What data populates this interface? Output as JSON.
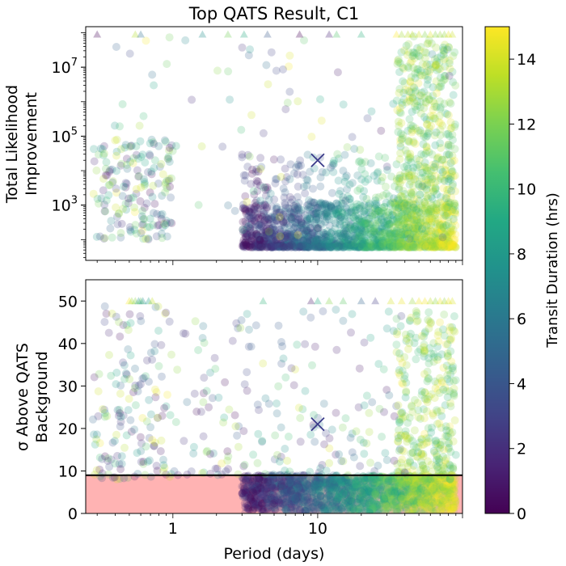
{
  "chart_data": [
    {
      "type": "scatter",
      "title": "Top QATS Result, C1",
      "xlabel": "",
      "ylabel_line1": "Total Likelihood",
      "ylabel_line2": "Improvement",
      "x_scale": "log",
      "y_scale": "log",
      "xlim": [
        0.25,
        100
      ],
      "ylim": [
        25,
        150000000
      ],
      "x_ticks": [],
      "y_ticks": [
        {
          "value": 1000,
          "base": "10",
          "exp": "3"
        },
        {
          "value": 100000,
          "base": "10",
          "exp": "5"
        },
        {
          "value": 10000000,
          "base": "10",
          "exp": "7"
        }
      ],
      "colorbar": {
        "label": "Transit Duration (hrs)",
        "colormap": "viridis",
        "range": [
          0,
          15
        ],
        "ticks": [
          "0",
          "2",
          "4",
          "6",
          "8",
          "10",
          "12",
          "14"
        ]
      },
      "highlight": {
        "marker": "x",
        "x": 10,
        "y": 20000,
        "color": "#3b3b8a"
      },
      "clusters": [
        {
          "desc": "dense main band",
          "x_range": [
            3,
            90
          ],
          "y_range": [
            60,
            1200
          ],
          "count": 1700,
          "dur_mode": "by_period"
        },
        {
          "desc": "upper spread",
          "x_range": [
            3,
            90
          ],
          "y_range": [
            400,
            30000
          ],
          "count": 260,
          "dur_mode": "by_period"
        },
        {
          "desc": "long-period column",
          "x_range": [
            35,
            90
          ],
          "y_range": [
            200,
            50000000
          ],
          "count": 420,
          "dur_mode": "high"
        },
        {
          "desc": "short-period cluster",
          "x_range": [
            0.28,
            1
          ],
          "y_range": [
            100,
            80000
          ],
          "count": 170,
          "dur_mode": "mixed"
        },
        {
          "desc": "scattered outliers",
          "x_range": [
            0.28,
            90
          ],
          "y_range": [
            100,
            80000000
          ],
          "count": 110,
          "dur_mode": "mixed"
        }
      ],
      "limit_markers": {
        "marker": "triangle",
        "y": 90000000,
        "x": [
          0.3,
          0.55,
          0.6,
          1.6,
          2.4,
          3.1,
          4.5,
          7.5,
          12,
          13.5,
          20,
          35,
          38,
          42,
          45,
          50,
          55,
          60,
          65,
          70,
          75,
          80,
          85
        ]
      }
    },
    {
      "type": "scatter",
      "title": "",
      "xlabel": "Period (days)",
      "ylabel_line1": "σ Above QATS",
      "ylabel_line2": "Background",
      "x_scale": "log",
      "y_scale": "linear",
      "xlim": [
        0.25,
        100
      ],
      "ylim": [
        0,
        55
      ],
      "x_ticks": [
        {
          "value": 1,
          "label": "1"
        },
        {
          "value": 10,
          "label": "10"
        }
      ],
      "y_ticks": [
        "0",
        "10",
        "20",
        "30",
        "40",
        "50"
      ],
      "threshold": {
        "value": 9,
        "line_color": "#000000",
        "fill_color": "#ffb3b3"
      },
      "highlight": {
        "marker": "x",
        "x": 10,
        "y": 21,
        "color": "#3b3b8a"
      },
      "clusters": [
        {
          "desc": "dense low band",
          "x_range": [
            3,
            90
          ],
          "y_range": [
            0,
            9
          ],
          "count": 1800,
          "dur_mode": "by_period"
        },
        {
          "desc": "long-period column",
          "x_range": [
            35,
            90
          ],
          "y_range": [
            8,
            48
          ],
          "count": 330,
          "dur_mode": "high"
        },
        {
          "desc": "short-period cluster",
          "x_range": [
            0.28,
            1
          ],
          "y_range": [
            8,
            49
          ],
          "count": 160,
          "dur_mode": "mixed"
        },
        {
          "desc": "mid scatter",
          "x_range": [
            1,
            40
          ],
          "y_range": [
            9,
            48
          ],
          "count": 200,
          "dur_mode": "mixed"
        }
      ],
      "limit_markers": {
        "marker": "triangle",
        "y": 50,
        "x": [
          0.5,
          0.52,
          0.55,
          0.58,
          0.6,
          0.62,
          0.68,
          0.72,
          4.2,
          9,
          10,
          12,
          15,
          20,
          25,
          32,
          38,
          45,
          50,
          55,
          60,
          65,
          70,
          75,
          80,
          85
        ]
      }
    }
  ]
}
